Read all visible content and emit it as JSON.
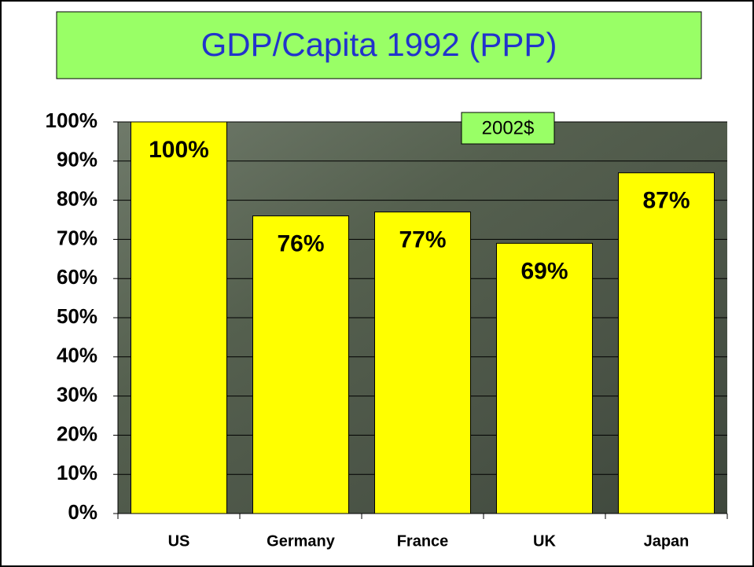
{
  "chart_data": {
    "type": "bar",
    "title": "GDP/Capita 1992 (PPP)",
    "annotation": "2002$",
    "categories": [
      "US",
      "Germany",
      "France",
      "UK",
      "Japan"
    ],
    "values": [
      100,
      76,
      77,
      69,
      87
    ],
    "value_labels": [
      "100%",
      "76%",
      "77%",
      "69%",
      "87%"
    ],
    "color": "#ffff00",
    "ylim": [
      0,
      100
    ],
    "yticks": [
      {
        "value": 0,
        "label": "0%"
      },
      {
        "value": 10,
        "label": "10%"
      },
      {
        "value": 20,
        "label": "20%"
      },
      {
        "value": 30,
        "label": "30%"
      },
      {
        "value": 40,
        "label": "40%"
      },
      {
        "value": 50,
        "label": "50%"
      },
      {
        "value": 60,
        "label": "60%"
      },
      {
        "value": 70,
        "label": "70%"
      },
      {
        "value": 80,
        "label": "80%"
      },
      {
        "value": 90,
        "label": "90%"
      },
      {
        "value": 100,
        "label": "100%"
      }
    ],
    "grid": true
  }
}
